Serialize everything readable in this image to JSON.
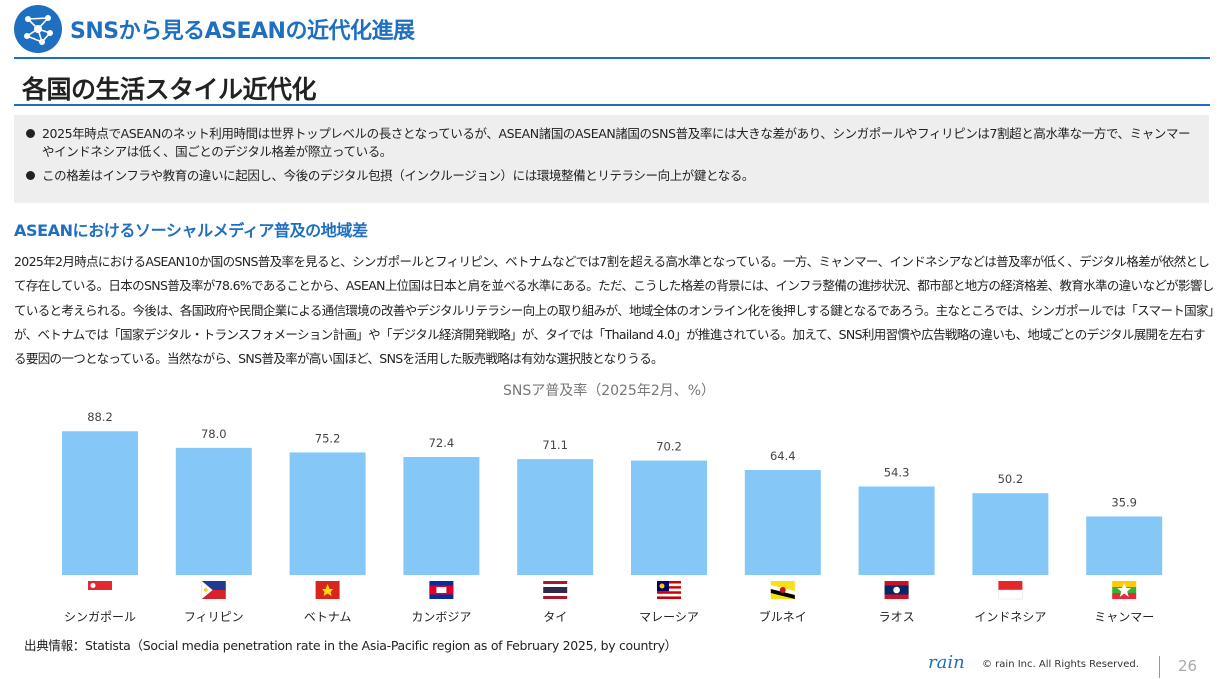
{
  "header": {
    "title": "SNSから見るASEANの近代化進展",
    "logo_icon": "network-icon",
    "accent_color": "#1f6fc0"
  },
  "page_title": "各国の生活スタイル近代化",
  "summary": {
    "bullets": [
      "2025年時点でASEANのネット利用時間は世界トップレベルの長さとなっているが、ASEAN諸国のASEAN諸国のSNS普及率には大きな差があり、シンガポールやフィリピンは7割超と高水準な一方で、ミャンマーやインドネシアは低く、国ごとのデジタル格差が際立っている。",
      "この格差はインフラや教育の違いに起因し、今後のデジタル包摂（インクルージョン）には環境整備とリテラシー向上が鍵となる。"
    ]
  },
  "section": {
    "heading": "ASEANにおけるソーシャルメディア普及の地域差",
    "body": "2025年2月時点におけるASEAN10か国のSNS普及率を見ると、シンガポールとフィリピン、ベトナムなどでは7割を超える高水準となっている。一方、ミャンマー、インドネシアなどは普及率が低く、デジタル格差が依然として存在している。日本のSNS普及率が78.6%であることから、ASEAN上位国は日本と肩を並べる水準にある。ただ、こうした格差の背景には、インフラ整備の進捗状況、都市部と地方の経済格差、教育水準の違いなどが影響していると考えられる。今後は、各国政府や民間企業による通信環境の改善やデジタルリテラシー向上の取り組みが、地域全体のオンライン化を後押しする鍵となるであろう。主なところでは、シンガポールでは「スマート国家」が、ベトナムでは「国家デジタル・トランスフォメーション計画」や「デジタル経済開発戦略」が、タイでは「Thailand 4.0」が推進されている。加えて、SNS利用習慣や広告戦略の違いも、地域ごとのデジタル展開を左右する要因の一つとなっている。当然ながら、SNS普及率が高い国ほど、SNSを活用した販売戦略は有効な選択肢となりうる。"
  },
  "chart_data": {
    "type": "bar",
    "title": "SNSア普及率（2025年2月、%）",
    "categories": [
      "シンガポール",
      "フィリピン",
      "ベトナム",
      "カンボジア",
      "タイ",
      "マレーシア",
      "ブルネイ",
      "ラオス",
      "インドネシア",
      "ミャンマー"
    ],
    "values": [
      88.2,
      78.0,
      75.2,
      72.4,
      71.1,
      70.2,
      64.4,
      54.3,
      50.2,
      35.9
    ],
    "value_labels": [
      "88.2",
      "78.0",
      "75.2",
      "72.4",
      "71.1",
      "70.2",
      "64.4",
      "54.3",
      "50.2",
      "35.9"
    ],
    "flags": [
      "flag-singapore-icon",
      "flag-philippines-icon",
      "flag-vietnam-icon",
      "flag-cambodia-icon",
      "flag-thailand-icon",
      "flag-malaysia-icon",
      "flag-brunei-icon",
      "flag-laos-icon",
      "flag-indonesia-icon",
      "flag-myanmar-icon"
    ],
    "bar_color": "#85c8f8",
    "ylim": [
      0,
      100
    ],
    "grid": false
  },
  "source": "出典情報：Statista（Social media penetration rate in the Asia-Pacific region as of February 2025, by country）",
  "footer": {
    "logo_text": "rain",
    "copyright": "© rain Inc. All Rights Reserved.",
    "page_number": "26"
  }
}
